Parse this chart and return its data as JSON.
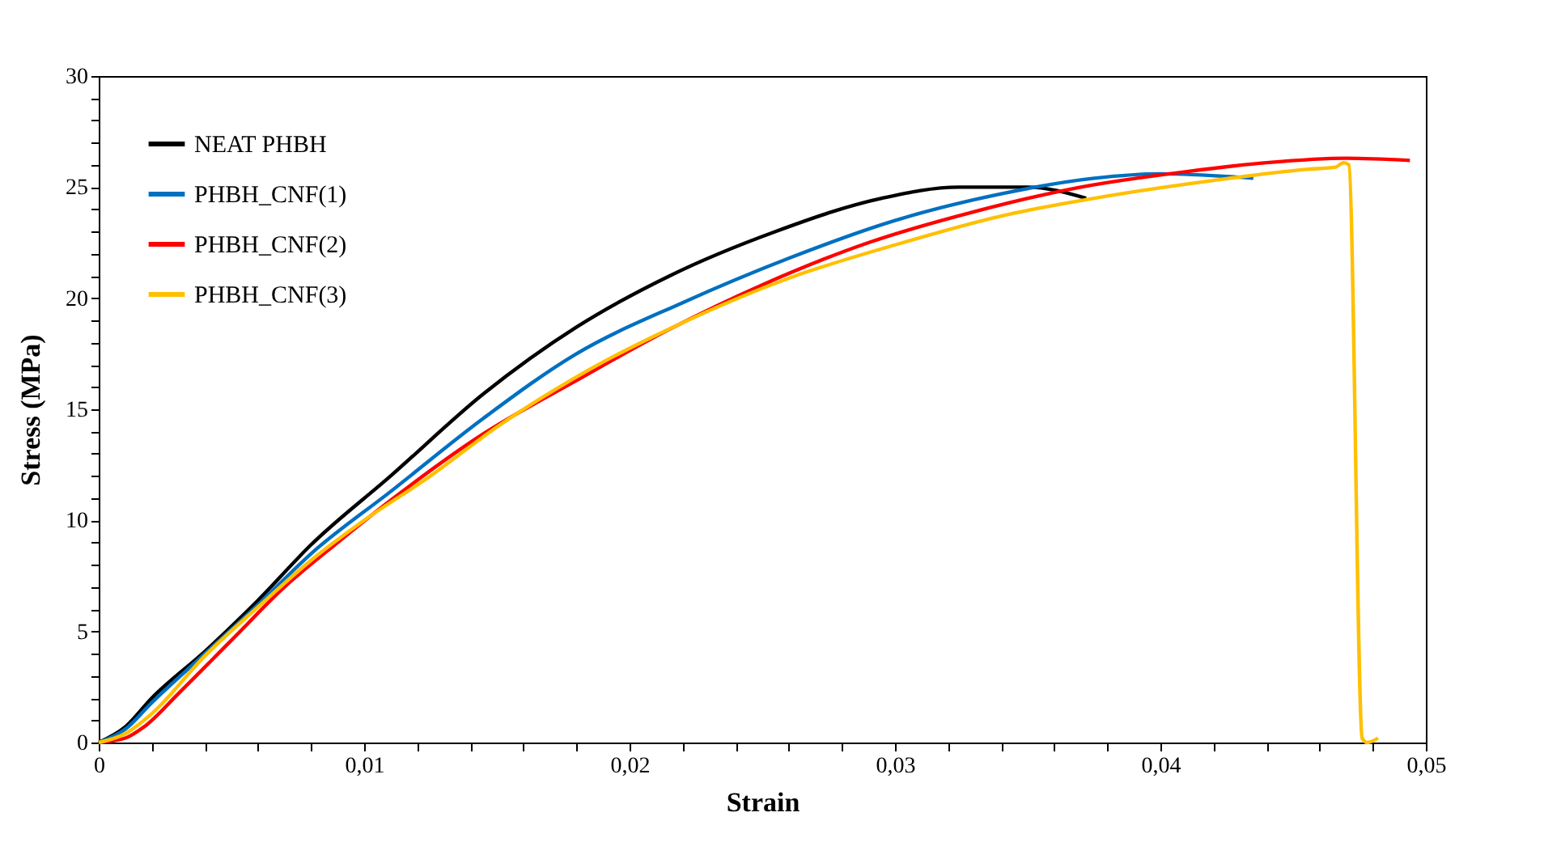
{
  "chart_data": {
    "type": "line",
    "xlabel": "Strain",
    "ylabel": "Stress (MPa)",
    "xlim": [
      0,
      0.05
    ],
    "ylim": [
      0,
      30
    ],
    "xticks": [
      0,
      {
        "value": 0.002,
        "label": null
      },
      {
        "value": 0.004,
        "label": null
      },
      {
        "value": 0.006,
        "label": null
      },
      {
        "value": 0.008,
        "label": null
      },
      {
        "value": 0.01,
        "label": "0,01"
      },
      {
        "value": 0.012,
        "label": null
      },
      {
        "value": 0.014,
        "label": null
      },
      {
        "value": 0.016,
        "label": null
      },
      {
        "value": 0.018,
        "label": null
      },
      {
        "value": 0.02,
        "label": "0,02"
      },
      {
        "value": 0.022,
        "label": null
      },
      {
        "value": 0.024,
        "label": null
      },
      {
        "value": 0.026,
        "label": null
      },
      {
        "value": 0.028,
        "label": null
      },
      {
        "value": 0.03,
        "label": "0,03"
      },
      {
        "value": 0.032,
        "label": null
      },
      {
        "value": 0.034,
        "label": null
      },
      {
        "value": 0.036,
        "label": null
      },
      {
        "value": 0.038,
        "label": null
      },
      {
        "value": 0.04,
        "label": "0,04"
      },
      {
        "value": 0.042,
        "label": null
      },
      {
        "value": 0.044,
        "label": null
      },
      {
        "value": 0.046,
        "label": null
      },
      {
        "value": 0.048,
        "label": null
      },
      {
        "value": 0.05,
        "label": "0,05"
      }
    ],
    "yticks": [
      0,
      {
        "value": 1,
        "label": null
      },
      {
        "value": 2,
        "label": null
      },
      {
        "value": 3,
        "label": null
      },
      {
        "value": 4,
        "label": null
      },
      5,
      {
        "value": 6,
        "label": null
      },
      {
        "value": 7,
        "label": null
      },
      {
        "value": 8,
        "label": null
      },
      {
        "value": 9,
        "label": null
      },
      10,
      {
        "value": 11,
        "label": null
      },
      {
        "value": 12,
        "label": null
      },
      {
        "value": 13,
        "label": null
      },
      {
        "value": 14,
        "label": null
      },
      15,
      {
        "value": 16,
        "label": null
      },
      {
        "value": 17,
        "label": null
      },
      {
        "value": 18,
        "label": null
      },
      {
        "value": 19,
        "label": null
      },
      20,
      {
        "value": 21,
        "label": null
      },
      {
        "value": 22,
        "label": null
      },
      {
        "value": 23,
        "label": null
      },
      {
        "value": 24,
        "label": null
      },
      25,
      {
        "value": 26,
        "label": null
      },
      {
        "value": 27,
        "label": null
      },
      {
        "value": 28,
        "label": null
      },
      {
        "value": 29,
        "label": null
      },
      30
    ],
    "grid": false,
    "legend": "top left",
    "marker": "none",
    "line_style": "solid",
    "series": [
      {
        "name": "NEAT PHBH",
        "color": "#000000",
        "x": [
          0,
          0.001,
          0.002,
          0.004,
          0.006,
          0.008,
          0.011,
          0.0145,
          0.018,
          0.0215,
          0.0255,
          0.0295,
          0.0324,
          0.035,
          0.0372
        ],
        "values": [
          0,
          0.7,
          2,
          4.1,
          6.4,
          8.9,
          12,
          15.7,
          18.7,
          21,
          23,
          24.5,
          25,
          25,
          24.5
        ]
      },
      {
        "name": "PHBH_CNF(1)",
        "color": "#0070c0",
        "x": [
          0,
          0.001,
          0.002,
          0.004,
          0.006,
          0.008,
          0.011,
          0.0145,
          0.018,
          0.022,
          0.026,
          0.03,
          0.034,
          0.0375,
          0.04,
          0.0435
        ],
        "values": [
          0,
          0.6,
          1.8,
          4,
          6.2,
          8.5,
          11.3,
          14.6,
          17.5,
          19.8,
          21.8,
          23.5,
          24.7,
          25.4,
          25.6,
          25.4
        ]
      },
      {
        "name": "PHBH_CNF(2)",
        "color": "#ff0000",
        "x": [
          0,
          0.001,
          0.0017,
          0.003,
          0.005,
          0.007,
          0.009,
          0.011,
          0.0145,
          0.018,
          0.0215,
          0.025,
          0.029,
          0.033,
          0.037,
          0.041,
          0.044,
          0.047,
          0.0494
        ],
        "values": [
          0,
          0.2,
          0.7,
          2.2,
          4.6,
          7,
          9,
          10.9,
          13.9,
          16.3,
          18.6,
          20.6,
          22.5,
          23.9,
          25,
          25.7,
          26.1,
          26.3,
          26.2
        ]
      },
      {
        "name": "PHBH_CNF(3)",
        "color": "#ffc000",
        "x": [
          0,
          0.001,
          0.002,
          0.004,
          0.006,
          0.008,
          0.01,
          0.0125,
          0.015,
          0.0185,
          0.022,
          0.026,
          0.03,
          0.034,
          0.038,
          0.042,
          0.0455,
          0.0466,
          0.0469,
          0.0471,
          0.0476,
          0.0478,
          0.0482
        ],
        "values": [
          0,
          0.4,
          1.3,
          3.9,
          6.1,
          8.2,
          10,
          12,
          14.2,
          16.8,
          18.9,
          20.9,
          22.4,
          23.7,
          24.6,
          25.3,
          25.8,
          25.9,
          26.1,
          26,
          0.2,
          0,
          0.2
        ]
      }
    ]
  }
}
